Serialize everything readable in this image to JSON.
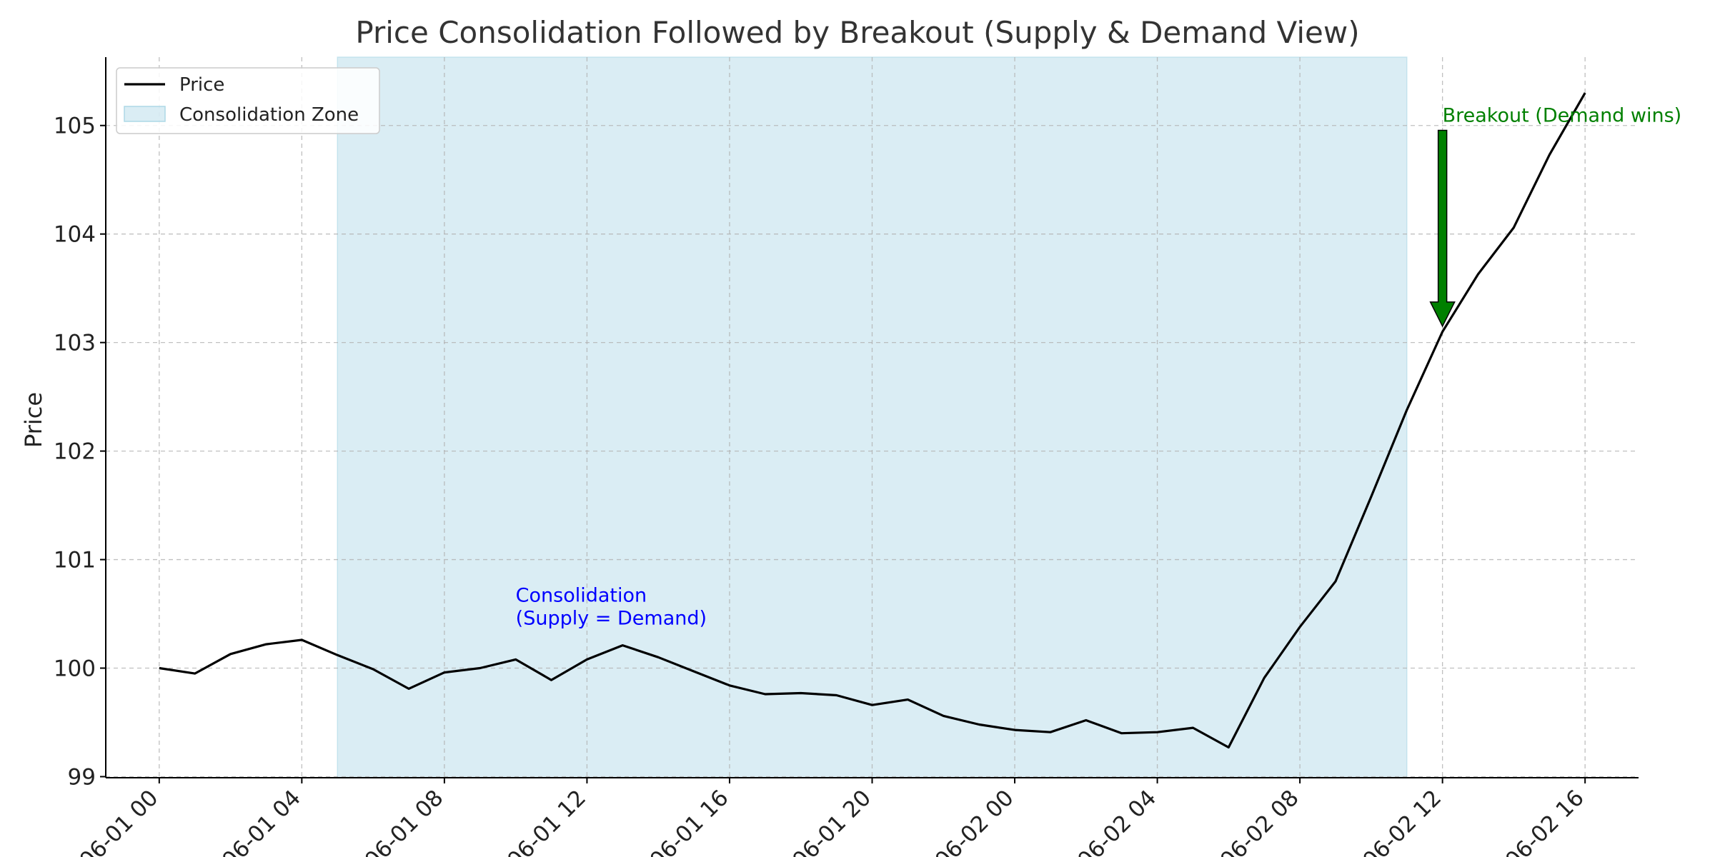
{
  "chart_data": {
    "type": "line",
    "title": "Price Consolidation Followed by Breakout (Supply & Demand View)",
    "xlabel": "",
    "ylabel": "Price",
    "x_unit": "hour",
    "x_start": "06-01 00",
    "x_tick_labels": [
      "06-01 00",
      "06-01 04",
      "06-01 08",
      "06-01 12",
      "06-01 16",
      "06-01 20",
      "06-02 00",
      "06-02 04",
      "06-02 08",
      "06-02 12",
      "06-02 16"
    ],
    "x_ticks_hours": [
      0,
      4,
      8,
      12,
      16,
      20,
      24,
      28,
      32,
      36,
      40
    ],
    "y_ticks": [
      99,
      100,
      101,
      102,
      103,
      104,
      105
    ],
    "xlim": [
      -1.5,
      41.5
    ],
    "ylim": [
      98.99,
      105.63
    ],
    "grid": true,
    "legend_position": "top-left",
    "series": [
      {
        "name": "Price",
        "color": "#000000",
        "x": [
          0,
          1,
          2,
          3,
          4,
          5,
          6,
          7,
          8,
          9,
          10,
          11,
          12,
          13,
          14,
          15,
          16,
          17,
          18,
          19,
          20,
          21,
          22,
          23,
          24,
          25,
          26,
          27,
          28,
          29,
          30,
          31,
          32,
          33,
          34,
          35,
          36,
          37,
          38,
          39,
          40
        ],
        "values": [
          100.0,
          99.95,
          100.13,
          100.22,
          100.26,
          100.12,
          99.99,
          99.81,
          99.96,
          100.0,
          100.08,
          99.89,
          100.08,
          100.21,
          100.1,
          99.97,
          99.84,
          99.76,
          99.77,
          99.75,
          99.66,
          99.71,
          99.56,
          99.48,
          99.43,
          99.41,
          99.52,
          99.4,
          99.41,
          99.45,
          99.27,
          99.91,
          100.38,
          100.8,
          101.58,
          102.38,
          103.1,
          103.63,
          104.06,
          104.73,
          105.3
        ]
      }
    ],
    "shaded_regions": [
      {
        "name": "Consolidation Zone",
        "x_start": 5,
        "x_end": 35,
        "color": "#add8e6"
      }
    ],
    "annotations": [
      {
        "text_lines": [
          "Consolidation",
          "(Supply = Demand)"
        ],
        "x": 10,
        "y": 100.4,
        "color": "#0000ff"
      },
      {
        "text": "Breakout (Demand wins)",
        "x": 36,
        "y": 105.1,
        "color": "#008000",
        "arrow_tip_x": 36,
        "arrow_tip_y": 103.15,
        "arrow_color": "#008000"
      }
    ]
  }
}
